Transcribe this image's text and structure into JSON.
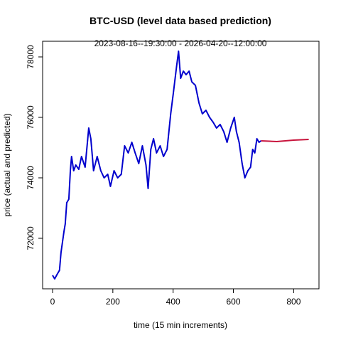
{
  "chart_data": {
    "type": "line",
    "title": "BTC-USD (level data based prediction)",
    "subtitle": "2023-08-16--19:30:00  -  2026-04-20--12:00:00",
    "x_label": "time (15 min increments)",
    "y_label": "price (actual and predicted)",
    "xlim": [
      -33,
      884
    ],
    "ylim": [
      70329,
      78518
    ],
    "xticks": [
      0,
      200,
      400,
      600,
      800
    ],
    "yticks": [
      72000,
      74000,
      76000,
      78000
    ],
    "grid": false,
    "series": [
      {
        "color": "#0000cd",
        "x": [
          0,
          7,
          16,
          23,
          28,
          33,
          38,
          42,
          47,
          54,
          59,
          63,
          70,
          77,
          87,
          96,
          108,
          120,
          127,
          136,
          148,
          160,
          171,
          183,
          192,
          204,
          216,
          228,
          239,
          251,
          263,
          274,
          286,
          298,
          310,
          317,
          326,
          335,
          345,
          357,
          368,
          380,
          392,
          401,
          411,
          418,
          425,
          434,
          443,
          453,
          462,
          474,
          486,
          497,
          509,
          521,
          533,
          544,
          556,
          568,
          579,
          591,
          603,
          610,
          619,
          629,
          638,
          648,
          657,
          664,
          671,
          678,
          685,
          692
        ],
        "values": [
          70776,
          70659,
          70824,
          70941,
          71529,
          71882,
          72235,
          72471,
          73176,
          73294,
          74235,
          74706,
          74235,
          74424,
          74282,
          74706,
          74353,
          75647,
          75294,
          74235,
          74706,
          74235,
          74000,
          74118,
          73718,
          74235,
          74000,
          74118,
          75059,
          74824,
          75176,
          74824,
          74471,
          75059,
          74424,
          73647,
          74941,
          75294,
          74824,
          75059,
          74706,
          74941,
          76118,
          76824,
          77647,
          78188,
          77294,
          77529,
          77412,
          77529,
          77176,
          77059,
          76471,
          76118,
          76235,
          76000,
          75835,
          75647,
          75765,
          75529,
          75176,
          75647,
          76000,
          75529,
          75176,
          74471,
          74000,
          74235,
          74353,
          74941,
          74824,
          75294,
          75176,
          75224
        ]
      },
      {
        "color": "#c8143c",
        "x": [
          692,
          744,
          800,
          850
        ],
        "values": [
          75224,
          75200,
          75247,
          75271
        ]
      }
    ]
  }
}
